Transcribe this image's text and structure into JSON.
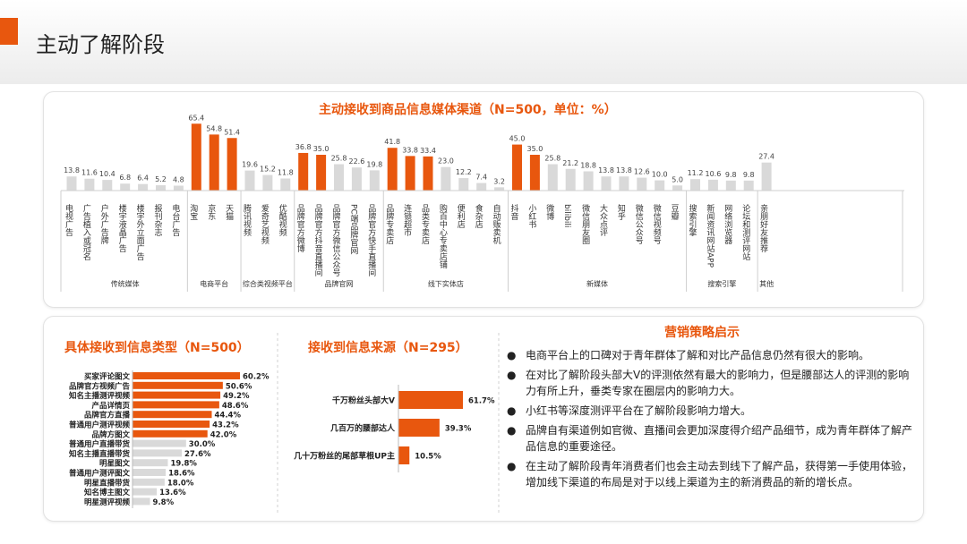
{
  "page_title": "主动了解阶段",
  "colors": {
    "accent": "#e8570e",
    "gray_bar": "#d9d9d9",
    "header_bg": "#ececec"
  },
  "chart1": {
    "title": "主动接收到商品信息媒体渠道（N=500，单位：%）"
  },
  "chart2": {
    "title": "具体接收到信息类型（N=500）"
  },
  "chart3": {
    "title": "接收到信息来源（N=295）"
  },
  "strategy": {
    "title": "营销策略启示",
    "items": [
      "电商平台上的口碑对于青年群体了解和对比产品信息仍然有很大的影响。",
      "在对比了解阶段头部大V的评测依然有最大的影响力，但是腰部达人的评测的影响力有所上升，垂类专家在圈层内的影响力大。",
      "小红书等深度测评平台在了解阶段影响力增大。",
      "品牌自有渠道例如官微、直播间会更加深度得介绍产品细节，成为青年群体了解产品信息的重要途径。",
      "在主动了解阶段青年消费者们也会主动去到线下了解产品，获得第一手使用体验，增加线下渠道的布局是对于以线上渠道为主的新消费品的新的增长点。"
    ]
  },
  "chart_data": [
    {
      "type": "bar",
      "title": "主动接收到商品信息媒体渠道（N=500，单位：%）",
      "unit": "%",
      "groups": [
        {
          "name": "传统媒体",
          "items": [
            {
              "label": "电视广告",
              "value": 13.8,
              "highlight": false
            },
            {
              "label": "广告植入或冠名",
              "value": 11.6,
              "highlight": false
            },
            {
              "label": "户外广告牌",
              "value": 10.4,
              "highlight": false
            },
            {
              "label": "楼宇液晶广告",
              "value": 6.8,
              "highlight": false
            },
            {
              "label": "楼宇外立面广告",
              "value": 6.4,
              "highlight": false
            },
            {
              "label": "报刊杂志",
              "value": 5.2,
              "highlight": false
            },
            {
              "label": "电台广告",
              "value": 4.8,
              "highlight": false
            }
          ]
        },
        {
          "name": "电商平台",
          "items": [
            {
              "label": "淘宝",
              "value": 65.4,
              "highlight": true
            },
            {
              "label": "京东",
              "value": 54.8,
              "highlight": true
            },
            {
              "label": "天猫",
              "value": 51.4,
              "highlight": true
            }
          ]
        },
        {
          "name": "综合类视频平台",
          "items": [
            {
              "label": "腾讯视频",
              "value": 19.6,
              "highlight": false
            },
            {
              "label": "爱奇艺视频",
              "value": 15.2,
              "highlight": false
            },
            {
              "label": "优酷视频",
              "value": 11.8,
              "highlight": false
            }
          ]
        },
        {
          "name": "品牌官网",
          "items": [
            {
              "label": "品牌官方微博",
              "value": 36.8,
              "highlight": true
            },
            {
              "label": "品牌官方抖音直播间",
              "value": 35.0,
              "highlight": true
            },
            {
              "label": "品牌官方微信公众号",
              "value": 25.8,
              "highlight": false
            },
            {
              "label": "PC端品牌官网",
              "value": 22.6,
              "highlight": false
            },
            {
              "label": "品牌官方快手直播间",
              "value": 19.8,
              "highlight": false
            }
          ]
        },
        {
          "name": "线下实体店",
          "items": [
            {
              "label": "品牌专卖店",
              "value": 41.8,
              "highlight": true
            },
            {
              "label": "连锁超市",
              "value": 33.8,
              "highlight": true
            },
            {
              "label": "品类专卖店",
              "value": 33.4,
              "highlight": true
            },
            {
              "label": "购百中心专卖店铺",
              "value": 23.0,
              "highlight": false
            },
            {
              "label": "便利店",
              "value": 12.2,
              "highlight": false
            },
            {
              "label": "食杂店",
              "value": 7.4,
              "highlight": false
            },
            {
              "label": "自动贩卖机",
              "value": 3.2,
              "highlight": false
            }
          ]
        },
        {
          "name": "新媒体",
          "items": [
            {
              "label": "抖音",
              "value": 45.0,
              "highlight": true
            },
            {
              "label": "小红书",
              "value": 35.0,
              "highlight": true
            },
            {
              "label": "微博",
              "value": 25.8,
              "highlight": false
            },
            {
              "label": "bilibili",
              "value": 21.2,
              "highlight": false
            },
            {
              "label": "微信朋友圈",
              "value": 18.8,
              "highlight": false
            },
            {
              "label": "大众点评",
              "value": 13.8,
              "highlight": false
            },
            {
              "label": "知乎",
              "value": 13.8,
              "highlight": false
            },
            {
              "label": "微信公众号",
              "value": 12.6,
              "highlight": false
            },
            {
              "label": "微信视频号",
              "value": 10.0,
              "highlight": false
            },
            {
              "label": "豆瓣",
              "value": 5.0,
              "highlight": false
            }
          ]
        },
        {
          "name": "搜索引擎",
          "items": [
            {
              "label": "搜索引擎",
              "value": 11.2,
              "highlight": false
            },
            {
              "label": "新闻资讯网站APP",
              "value": 10.6,
              "highlight": false
            },
            {
              "label": "网络浏览器",
              "value": 9.8,
              "highlight": false
            },
            {
              "label": "论坛和测评网站",
              "value": 9.8,
              "highlight": false
            }
          ]
        },
        {
          "name": "其他",
          "items": [
            {
              "label": "亲朋好友推荐",
              "value": 27.4,
              "highlight": false
            }
          ]
        }
      ]
    },
    {
      "type": "bar",
      "orientation": "horizontal",
      "title": "具体接收到信息类型（N=500）",
      "categories": [
        "买家评论图文",
        "品牌官方视频广告",
        "知名主播测评视频",
        "产品详情页",
        "品牌官方直播",
        "普通用户测评视频",
        "品牌方图文",
        "普通用户直播带货",
        "知名主播直播带货",
        "明星图文",
        "普通用户测评图文",
        "明星直播带货",
        "知名博主图文",
        "明星测评视频"
      ],
      "values": [
        60.2,
        50.6,
        49.2,
        48.6,
        44.4,
        43.2,
        42.0,
        30.0,
        27.6,
        19.8,
        18.6,
        18.0,
        13.6,
        9.8
      ],
      "highlight_count": 7,
      "unit": "%"
    },
    {
      "type": "bar",
      "orientation": "horizontal",
      "title": "接收到信息来源（N=295）",
      "categories": [
        "千万粉丝头部大V",
        "几百万的腰部达人",
        "几十万粉丝的尾部草根UP主"
      ],
      "values": [
        61.7,
        39.3,
        10.5
      ],
      "unit": "%"
    }
  ]
}
